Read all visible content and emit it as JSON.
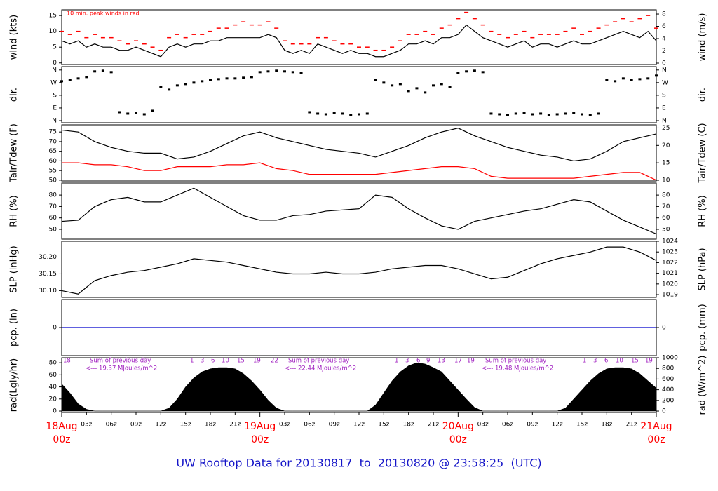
{
  "footer": "UW Rooftop Data for 20130817  to  20130820 @ 23:58:25  (UTC)",
  "chart_data": [
    {
      "type": "line",
      "ylabel": "wind (kts)",
      "y2label": "wind (m/s)",
      "annotation": "10 min. peak winds in red",
      "ylim": [
        -0.5,
        16.8
      ],
      "yticks": [
        0,
        5,
        10,
        15
      ],
      "y2lim": [
        -0.23,
        8.69
      ],
      "y2ticks": [
        0,
        2,
        4,
        6,
        8
      ],
      "x": [
        0,
        1,
        2,
        3,
        4,
        5,
        6,
        7,
        8,
        9,
        10,
        11,
        12,
        13,
        14,
        15,
        16,
        17,
        18,
        19,
        20,
        21,
        22,
        23,
        24,
        25,
        26,
        27,
        28,
        29,
        30,
        31,
        32,
        33,
        34,
        35,
        36,
        37,
        38,
        39,
        40,
        41,
        42,
        43,
        44,
        45,
        46,
        47,
        48,
        49,
        50,
        51,
        52,
        53,
        54,
        55,
        56,
        57,
        58,
        59,
        60,
        61,
        62,
        63,
        64,
        65,
        66,
        67,
        68,
        69,
        70,
        71,
        72
      ],
      "series": [
        {
          "name": "wind",
          "color": "#000000",
          "marker": "line",
          "values": [
            7,
            6,
            7,
            5,
            6,
            5,
            5,
            4,
            4,
            5,
            4,
            3,
            2,
            5,
            6,
            5,
            6,
            6,
            7,
            7,
            8,
            8,
            8,
            8,
            8,
            9,
            8,
            4,
            3,
            4,
            3,
            6,
            5,
            4,
            3,
            4,
            3,
            3,
            2,
            2,
            3,
            4,
            6,
            6,
            7,
            6,
            8,
            8,
            9,
            12,
            10,
            8,
            7,
            6,
            5,
            6,
            7,
            5,
            6,
            6,
            5,
            6,
            7,
            6,
            6,
            7,
            8,
            9,
            10,
            9,
            8,
            10,
            7
          ]
        },
        {
          "name": "10 min. peak",
          "color": "#ff0000",
          "marker": "dash",
          "values": [
            10,
            9,
            10,
            8,
            9,
            8,
            8,
            7,
            6,
            7,
            6,
            5,
            4,
            8,
            9,
            8,
            9,
            9,
            10,
            11,
            11,
            12,
            13,
            12,
            12,
            13,
            11,
            7,
            6,
            6,
            6,
            8,
            8,
            7,
            6,
            6,
            5,
            5,
            4,
            4,
            5,
            7,
            9,
            9,
            10,
            9,
            11,
            12,
            14,
            16,
            14,
            12,
            10,
            9,
            8,
            9,
            10,
            8,
            9,
            9,
            9,
            10,
            11,
            9,
            10,
            11,
            12,
            13,
            14,
            13,
            14,
            15,
            11
          ]
        }
      ]
    },
    {
      "type": "scatter",
      "ylabel": "dir.",
      "y2label": "dir.",
      "ylim": [
        -15,
        384
      ],
      "yticks": [
        {
          "value": 0,
          "label": "N"
        },
        {
          "value": 90,
          "label": "E"
        },
        {
          "value": 180,
          "label": "S"
        },
        {
          "value": 270,
          "label": "W"
        },
        {
          "value": 360,
          "label": "N"
        }
      ],
      "y2lim": [
        -15,
        384
      ],
      "y2ticks": [
        {
          "value": 0,
          "label": "N"
        },
        {
          "value": 90,
          "label": "E"
        },
        {
          "value": 180,
          "label": "S"
        },
        {
          "value": 270,
          "label": "W"
        },
        {
          "value": 360,
          "label": "N"
        }
      ],
      "x": [
        0,
        1,
        2,
        3,
        4,
        5,
        6,
        7,
        8,
        9,
        10,
        11,
        12,
        13,
        14,
        15,
        16,
        17,
        18,
        19,
        20,
        21,
        22,
        23,
        24,
        25,
        26,
        27,
        28,
        29,
        30,
        31,
        32,
        33,
        34,
        35,
        36,
        37,
        38,
        39,
        40,
        41,
        42,
        43,
        44,
        45,
        46,
        47,
        48,
        49,
        50,
        51,
        52,
        53,
        54,
        55,
        56,
        57,
        58,
        59,
        60,
        61,
        62,
        63,
        64,
        65,
        66,
        67,
        68,
        69,
        70,
        71,
        72
      ],
      "series": [
        {
          "name": "direction",
          "color": "#000000",
          "marker": "point",
          "values": [
            280,
            290,
            300,
            310,
            350,
            355,
            345,
            60,
            50,
            55,
            45,
            70,
            240,
            220,
            250,
            260,
            270,
            280,
            290,
            295,
            300,
            300,
            305,
            310,
            345,
            350,
            355,
            350,
            345,
            340,
            60,
            50,
            45,
            55,
            50,
            40,
            45,
            50,
            290,
            270,
            250,
            260,
            210,
            230,
            200,
            250,
            260,
            240,
            340,
            350,
            355,
            345,
            50,
            45,
            40,
            50,
            55,
            45,
            50,
            40,
            45,
            50,
            55,
            45,
            40,
            50,
            290,
            280,
            300,
            290,
            295,
            300,
            320
          ]
        }
      ]
    },
    {
      "type": "line",
      "ylabel": "Tair/Tdew (F)",
      "y2label": "Tair/Tdew (C)",
      "ylim": [
        49.6,
        78.7
      ],
      "yticks": [
        50,
        55,
        60,
        65,
        70,
        75
      ],
      "y2lim": [
        9.8,
        25.9
      ],
      "y2ticks": [
        10,
        15,
        20,
        25
      ],
      "x": [
        0,
        2,
        4,
        6,
        8,
        10,
        12,
        14,
        16,
        18,
        20,
        22,
        24,
        26,
        28,
        30,
        32,
        34,
        36,
        38,
        40,
        42,
        44,
        46,
        48,
        50,
        52,
        54,
        56,
        58,
        60,
        62,
        64,
        66,
        68,
        70,
        72
      ],
      "series": [
        {
          "name": "Tair",
          "color": "#000000",
          "marker": "line",
          "values": [
            76,
            75,
            70,
            67,
            65,
            64,
            64,
            61,
            62,
            65,
            69,
            73,
            75,
            72,
            70,
            68,
            66,
            65,
            64,
            62,
            65,
            68,
            72,
            75,
            77,
            73,
            70,
            67,
            65,
            63,
            62,
            60,
            61,
            65,
            70,
            72,
            74
          ]
        },
        {
          "name": "Tdew",
          "color": "#ff0000",
          "marker": "line",
          "values": [
            59,
            59,
            58,
            58,
            57,
            55,
            55,
            57,
            57,
            57,
            58,
            58,
            59,
            56,
            55,
            53,
            53,
            53,
            53,
            53,
            54,
            55,
            56,
            57,
            57,
            56,
            52,
            51,
            51,
            51,
            51,
            51,
            52,
            53,
            54,
            54,
            50
          ]
        }
      ]
    },
    {
      "type": "line",
      "ylabel": "RH (%)",
      "y2label": "RH (%)",
      "ylim": [
        41.4,
        90.5
      ],
      "yticks": [
        50,
        60,
        70,
        80
      ],
      "y2lim": [
        41.4,
        90.5
      ],
      "y2ticks": [
        50,
        60,
        70,
        80
      ],
      "x": [
        0,
        2,
        4,
        6,
        8,
        10,
        12,
        14,
        16,
        18,
        20,
        22,
        24,
        26,
        28,
        30,
        32,
        34,
        36,
        38,
        40,
        42,
        44,
        46,
        48,
        50,
        52,
        54,
        56,
        58,
        60,
        62,
        64,
        66,
        68,
        70,
        72
      ],
      "series": [
        {
          "name": "RH",
          "color": "#000000",
          "marker": "line",
          "values": [
            57,
            58,
            70,
            76,
            78,
            74,
            74,
            80,
            86,
            78,
            70,
            62,
            58,
            58,
            62,
            63,
            66,
            67,
            68,
            80,
            78,
            68,
            60,
            53,
            50,
            57,
            60,
            63,
            66,
            68,
            72,
            76,
            74,
            66,
            58,
            52,
            46
          ]
        }
      ]
    },
    {
      "type": "line",
      "ylabel": "SLP (inHg)",
      "y2label": "SLP (hPa)",
      "ylim": [
        30.08,
        30.247
      ],
      "yticks": [
        {
          "value": 30.1,
          "label": "30.10"
        },
        30.15,
        {
          "value": 30.2,
          "label": "30.20"
        }
      ],
      "y2lim": [
        1018.74,
        1024
      ],
      "y2ticks": [
        1019,
        1020,
        1021,
        1022,
        1023,
        1024
      ],
      "x": [
        0,
        2,
        4,
        6,
        8,
        10,
        12,
        14,
        16,
        18,
        20,
        22,
        24,
        26,
        28,
        30,
        32,
        34,
        36,
        38,
        40,
        42,
        44,
        46,
        48,
        50,
        52,
        54,
        56,
        58,
        60,
        62,
        64,
        66,
        68,
        70,
        72
      ],
      "series": [
        {
          "name": "SLP",
          "color": "#000000",
          "marker": "line",
          "values": [
            30.1,
            30.09,
            30.13,
            30.145,
            30.155,
            30.16,
            30.17,
            30.18,
            30.195,
            30.19,
            30.185,
            30.175,
            30.165,
            30.155,
            30.15,
            30.15,
            30.155,
            30.15,
            30.15,
            30.155,
            30.165,
            30.17,
            30.175,
            30.175,
            30.165,
            30.15,
            30.135,
            30.14,
            30.16,
            30.18,
            30.195,
            30.205,
            30.215,
            30.23,
            30.23,
            30.215,
            30.19
          ]
        }
      ]
    },
    {
      "type": "line",
      "ylabel": "pcp. (in)",
      "y2label": "pcp. (mm)",
      "ylim": [
        -1,
        1
      ],
      "yticks": [
        0
      ],
      "y2lim": [
        -1,
        1
      ],
      "y2ticks": [
        0
      ],
      "x": [
        0,
        72
      ],
      "series": [
        {
          "name": "pcp",
          "color": "#0000cc",
          "marker": "line",
          "values": [
            0,
            0
          ]
        }
      ]
    },
    {
      "type": "area",
      "ylabel": "rad(Lgly/hr)",
      "y2label": "rad (W/m^2)",
      "ylim": [
        -2.3,
        88.3
      ],
      "yticks": [
        0,
        20,
        40,
        60,
        80
      ],
      "y2lim": [
        -26,
        1000
      ],
      "y2ticks": [
        0,
        200,
        400,
        600,
        800,
        1000
      ],
      "annotations": [
        "18",
        "Sum of previous day",
        "<--- 19.37 MJoules/m^2",
        "1",
        "3",
        "6",
        "10",
        "15",
        "19",
        "22",
        "Sum of previous day",
        "<--- 22.44 MJoules/m^2",
        "1",
        "3",
        "6",
        "9",
        "13",
        "17",
        "19",
        "Sum of previous day",
        "<--- 19.48 MJoules/m^2",
        "1",
        "3",
        "6",
        "10",
        "15",
        "19"
      ],
      "annotation_color": "#a020c0",
      "x": [
        0,
        1,
        2,
        3,
        4,
        5,
        6,
        7,
        8,
        9,
        10,
        11,
        12,
        13,
        14,
        15,
        16,
        17,
        18,
        19,
        20,
        21,
        22,
        23,
        24,
        25,
        26,
        27,
        28,
        29,
        30,
        31,
        32,
        33,
        34,
        35,
        36,
        37,
        38,
        39,
        40,
        41,
        42,
        43,
        44,
        45,
        46,
        47,
        48,
        49,
        50,
        51,
        52,
        53,
        54,
        55,
        56,
        57,
        58,
        59,
        60,
        61,
        62,
        63,
        64,
        65,
        66,
        67,
        68,
        69,
        70,
        71,
        72
      ],
      "series": [
        {
          "name": "radiation",
          "color": "#000000",
          "marker": "area",
          "values": [
            45,
            30,
            12,
            3,
            0,
            0,
            0,
            0,
            0,
            0,
            0,
            0,
            0,
            5,
            20,
            40,
            55,
            65,
            70,
            72,
            72,
            70,
            62,
            50,
            35,
            18,
            5,
            0,
            0,
            0,
            0,
            0,
            0,
            0,
            0,
            0,
            0,
            0,
            10,
            30,
            50,
            65,
            75,
            80,
            78,
            72,
            65,
            50,
            35,
            20,
            6,
            0,
            0,
            0,
            0,
            0,
            0,
            0,
            0,
            0,
            0,
            5,
            20,
            35,
            50,
            62,
            70,
            72,
            72,
            70,
            62,
            50,
            38
          ]
        }
      ],
      "xlim": [
        0,
        72
      ],
      "xticks": [
        {
          "value": 3,
          "label": "03z"
        },
        {
          "value": 6,
          "label": "06z"
        },
        {
          "value": 9,
          "label": "09z"
        },
        {
          "value": 12,
          "label": "12z"
        },
        {
          "value": 15,
          "label": "15z"
        },
        {
          "value": 18,
          "label": "18z"
        },
        {
          "value": 21,
          "label": "21z"
        },
        {
          "value": 27,
          "label": "03z"
        },
        {
          "value": 30,
          "label": "06z"
        },
        {
          "value": 33,
          "label": "09z"
        },
        {
          "value": 36,
          "label": "12z"
        },
        {
          "value": 39,
          "label": "15z"
        },
        {
          "value": 42,
          "label": "18z"
        },
        {
          "value": 45,
          "label": "21z"
        },
        {
          "value": 51,
          "label": "03z"
        },
        {
          "value": 54,
          "label": "06z"
        },
        {
          "value": 57,
          "label": "09z"
        },
        {
          "value": 60,
          "label": "12z"
        },
        {
          "value": 63,
          "label": "15z"
        },
        {
          "value": 66,
          "label": "18z"
        },
        {
          "value": 69,
          "label": "21z"
        }
      ],
      "date_ticks": [
        {
          "value": 0,
          "label": "18Aug",
          "hour": "00z"
        },
        {
          "value": 24,
          "label": "19Aug",
          "hour": "00z"
        },
        {
          "value": 48,
          "label": "20Aug",
          "hour": "00z"
        },
        {
          "value": 72,
          "label": "21Aug",
          "hour": "00z"
        }
      ],
      "date_color": "#ff0000"
    }
  ]
}
